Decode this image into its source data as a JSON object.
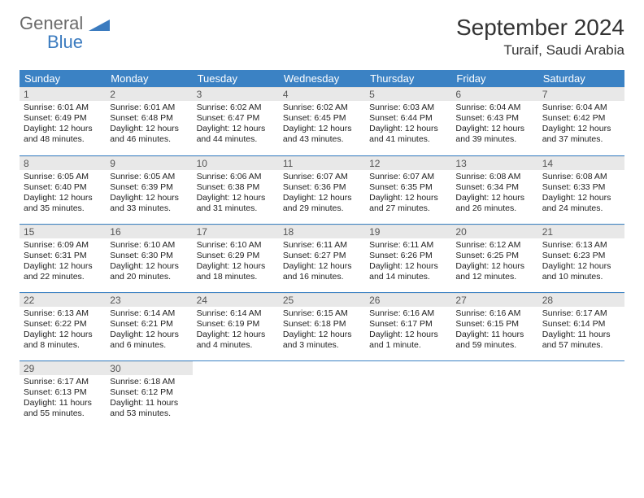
{
  "brand": {
    "name_top": "General",
    "name_bottom": "Blue"
  },
  "title": "September 2024",
  "location": "Turaif, Saudi Arabia",
  "colors": {
    "header_bg": "#3b82c4",
    "header_text": "#ffffff",
    "daynum_bg": "#e8e8e8",
    "row_divider": "#3b82c4",
    "logo_gray": "#6b6b6b",
    "logo_blue": "#3b7bbf"
  },
  "weekdays": [
    "Sunday",
    "Monday",
    "Tuesday",
    "Wednesday",
    "Thursday",
    "Friday",
    "Saturday"
  ],
  "cells": [
    {
      "n": "1",
      "sr": "6:01 AM",
      "ss": "6:49 PM",
      "dl": "12 hours and 48 minutes."
    },
    {
      "n": "2",
      "sr": "6:01 AM",
      "ss": "6:48 PM",
      "dl": "12 hours and 46 minutes."
    },
    {
      "n": "3",
      "sr": "6:02 AM",
      "ss": "6:47 PM",
      "dl": "12 hours and 44 minutes."
    },
    {
      "n": "4",
      "sr": "6:02 AM",
      "ss": "6:45 PM",
      "dl": "12 hours and 43 minutes."
    },
    {
      "n": "5",
      "sr": "6:03 AM",
      "ss": "6:44 PM",
      "dl": "12 hours and 41 minutes."
    },
    {
      "n": "6",
      "sr": "6:04 AM",
      "ss": "6:43 PM",
      "dl": "12 hours and 39 minutes."
    },
    {
      "n": "7",
      "sr": "6:04 AM",
      "ss": "6:42 PM",
      "dl": "12 hours and 37 minutes."
    },
    {
      "n": "8",
      "sr": "6:05 AM",
      "ss": "6:40 PM",
      "dl": "12 hours and 35 minutes."
    },
    {
      "n": "9",
      "sr": "6:05 AM",
      "ss": "6:39 PM",
      "dl": "12 hours and 33 minutes."
    },
    {
      "n": "10",
      "sr": "6:06 AM",
      "ss": "6:38 PM",
      "dl": "12 hours and 31 minutes."
    },
    {
      "n": "11",
      "sr": "6:07 AM",
      "ss": "6:36 PM",
      "dl": "12 hours and 29 minutes."
    },
    {
      "n": "12",
      "sr": "6:07 AM",
      "ss": "6:35 PM",
      "dl": "12 hours and 27 minutes."
    },
    {
      "n": "13",
      "sr": "6:08 AM",
      "ss": "6:34 PM",
      "dl": "12 hours and 26 minutes."
    },
    {
      "n": "14",
      "sr": "6:08 AM",
      "ss": "6:33 PM",
      "dl": "12 hours and 24 minutes."
    },
    {
      "n": "15",
      "sr": "6:09 AM",
      "ss": "6:31 PM",
      "dl": "12 hours and 22 minutes."
    },
    {
      "n": "16",
      "sr": "6:10 AM",
      "ss": "6:30 PM",
      "dl": "12 hours and 20 minutes."
    },
    {
      "n": "17",
      "sr": "6:10 AM",
      "ss": "6:29 PM",
      "dl": "12 hours and 18 minutes."
    },
    {
      "n": "18",
      "sr": "6:11 AM",
      "ss": "6:27 PM",
      "dl": "12 hours and 16 minutes."
    },
    {
      "n": "19",
      "sr": "6:11 AM",
      "ss": "6:26 PM",
      "dl": "12 hours and 14 minutes."
    },
    {
      "n": "20",
      "sr": "6:12 AM",
      "ss": "6:25 PM",
      "dl": "12 hours and 12 minutes."
    },
    {
      "n": "21",
      "sr": "6:13 AM",
      "ss": "6:23 PM",
      "dl": "12 hours and 10 minutes."
    },
    {
      "n": "22",
      "sr": "6:13 AM",
      "ss": "6:22 PM",
      "dl": "12 hours and 8 minutes."
    },
    {
      "n": "23",
      "sr": "6:14 AM",
      "ss": "6:21 PM",
      "dl": "12 hours and 6 minutes."
    },
    {
      "n": "24",
      "sr": "6:14 AM",
      "ss": "6:19 PM",
      "dl": "12 hours and 4 minutes."
    },
    {
      "n": "25",
      "sr": "6:15 AM",
      "ss": "6:18 PM",
      "dl": "12 hours and 3 minutes."
    },
    {
      "n": "26",
      "sr": "6:16 AM",
      "ss": "6:17 PM",
      "dl": "12 hours and 1 minute."
    },
    {
      "n": "27",
      "sr": "6:16 AM",
      "ss": "6:15 PM",
      "dl": "11 hours and 59 minutes."
    },
    {
      "n": "28",
      "sr": "6:17 AM",
      "ss": "6:14 PM",
      "dl": "11 hours and 57 minutes."
    },
    {
      "n": "29",
      "sr": "6:17 AM",
      "ss": "6:13 PM",
      "dl": "11 hours and 55 minutes."
    },
    {
      "n": "30",
      "sr": "6:18 AM",
      "ss": "6:12 PM",
      "dl": "11 hours and 53 minutes."
    }
  ],
  "labels": {
    "sunrise": "Sunrise:",
    "sunset": "Sunset:",
    "daylight": "Daylight:"
  }
}
